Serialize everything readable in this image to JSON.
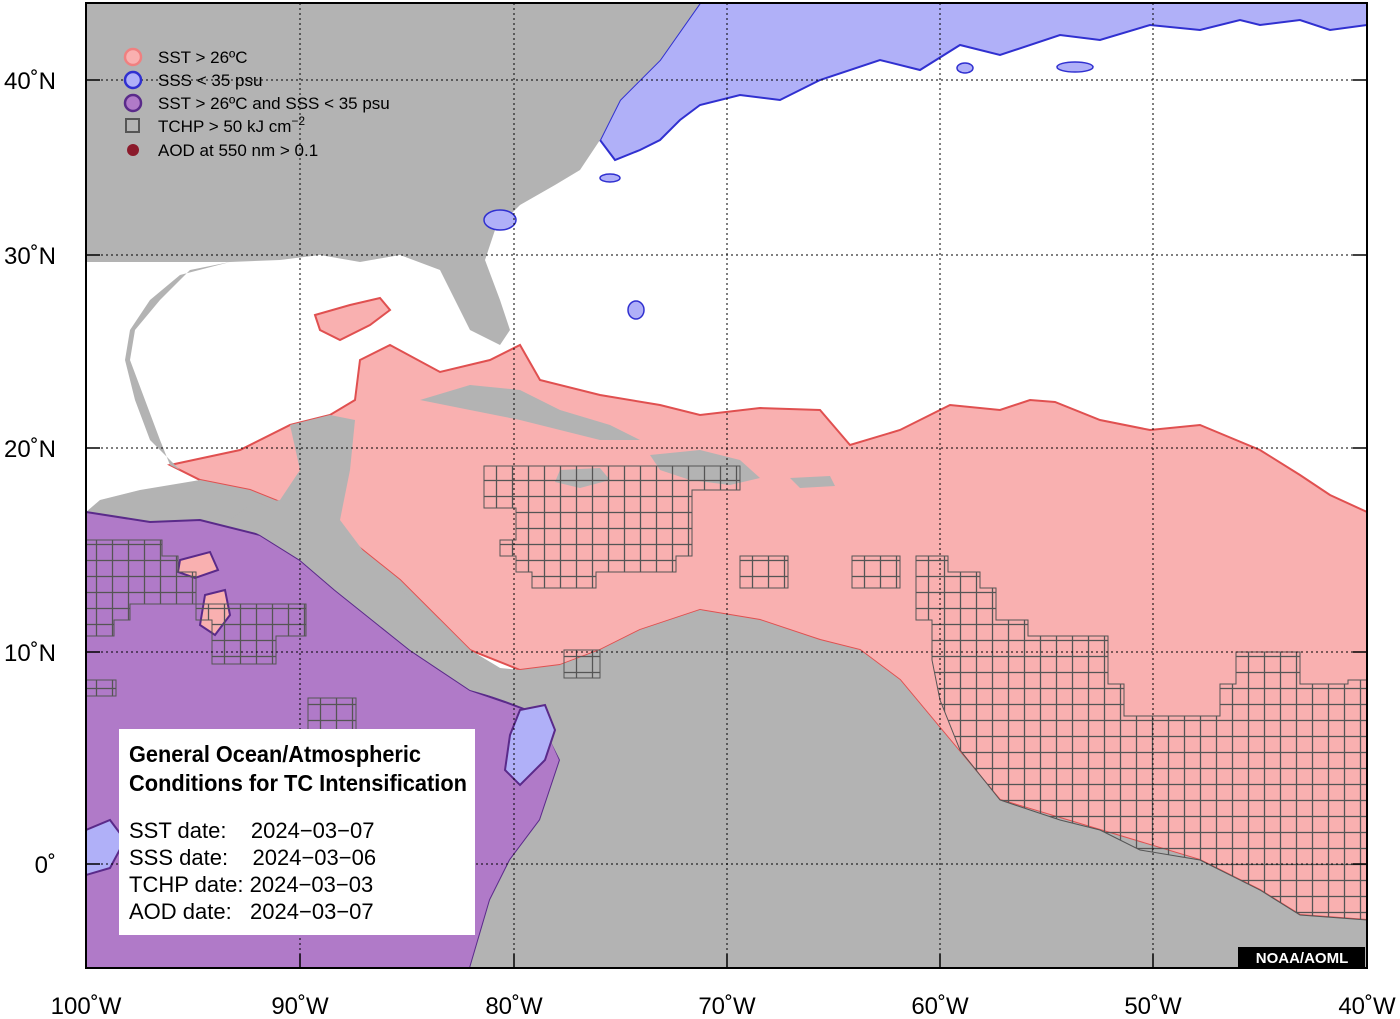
{
  "map": {
    "lon_ticks": [
      "100˚W",
      "90˚W",
      "80˚W",
      "70˚W",
      "60˚W",
      "50˚W",
      "40˚W"
    ],
    "lat_ticks": [
      "40˚N",
      "30˚N",
      "20˚N",
      "10˚N",
      "0˚"
    ]
  },
  "legend": {
    "items": [
      {
        "label": "SST > 26ºC",
        "color": "#f08080",
        "symbol": "circle"
      },
      {
        "label": "SSS < 35 psu",
        "color": "#8080f0",
        "symbol": "circle"
      },
      {
        "label": "SST > 26ºC and SSS < 35 psu",
        "color": "#a070c0",
        "symbol": "circle"
      },
      {
        "label": "TCHP > 50 kJ cm",
        "superscript": "−2",
        "color": "#555555",
        "symbol": "square"
      },
      {
        "label": "AOD at 550 nm > 0.1",
        "color": "#8b1a2b",
        "symbol": "dot"
      }
    ]
  },
  "info_box": {
    "title_line1": "General Ocean/Atmospheric",
    "title_line2": "Conditions for TC Intensification",
    "sst_date": "SST date:    2024−03−07",
    "sss_date": "SSS date:    2024−03−06",
    "tchp_date": "TCHP date: 2024−03−03",
    "aod_date": "AOD date:   2024−03−07"
  },
  "credit": "NOAA/AOML",
  "colors": {
    "land": "#b3b3b3",
    "sst": "#f9b0b0",
    "sst_edge": "#e05050",
    "sss": "#b0b0f8",
    "sss_edge": "#3030d0",
    "both": "#b07ac8",
    "both_edge": "#5a2a8a",
    "tchp": "#555555"
  }
}
